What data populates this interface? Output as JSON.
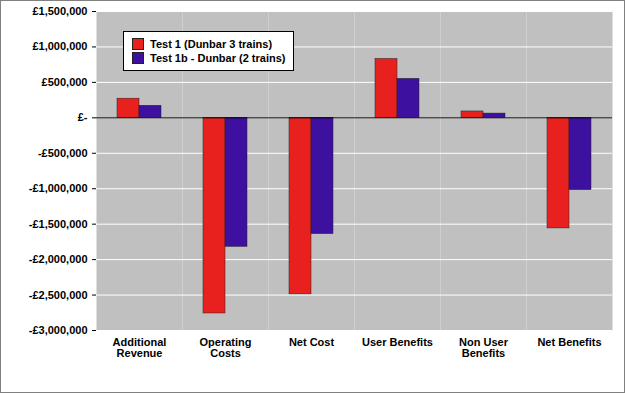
{
  "chart_data": {
    "type": "bar",
    "categories": [
      "Additional Revenue",
      "Operating Costs",
      "Net Cost",
      "User Benefits",
      "Non User Benefits",
      "Net Benefits"
    ],
    "series": [
      {
        "name": "Test 1 (Dunbar 3 trains)",
        "color": "#e8201e",
        "values": [
          270000,
          -2760000,
          -2490000,
          830000,
          90000,
          -1560000
        ]
      },
      {
        "name": "Test 1b - Dunbar (2 trains)",
        "color": "#3d10a0",
        "values": [
          170000,
          -1820000,
          -1640000,
          550000,
          60000,
          -1020000
        ]
      }
    ],
    "ylim": [
      -3000000,
      1500000
    ],
    "yticks": [
      {
        "value": -3000000,
        "label": "-£3,000,000"
      },
      {
        "value": -2500000,
        "label": "-£2,500,000"
      },
      {
        "value": -2000000,
        "label": "-£2,000,000"
      },
      {
        "value": -1500000,
        "label": "-£1,500,000"
      },
      {
        "value": -1000000,
        "label": "-£1,000,000"
      },
      {
        "value": -500000,
        "label": "-£500,000"
      },
      {
        "value": 0,
        "label": "£-"
      },
      {
        "value": 500000,
        "label": "£500,000"
      },
      {
        "value": 1000000,
        "label": "£1,000,000"
      },
      {
        "value": 1500000,
        "label": "£1,500,000"
      }
    ],
    "grid": true,
    "legend": "top-left"
  }
}
